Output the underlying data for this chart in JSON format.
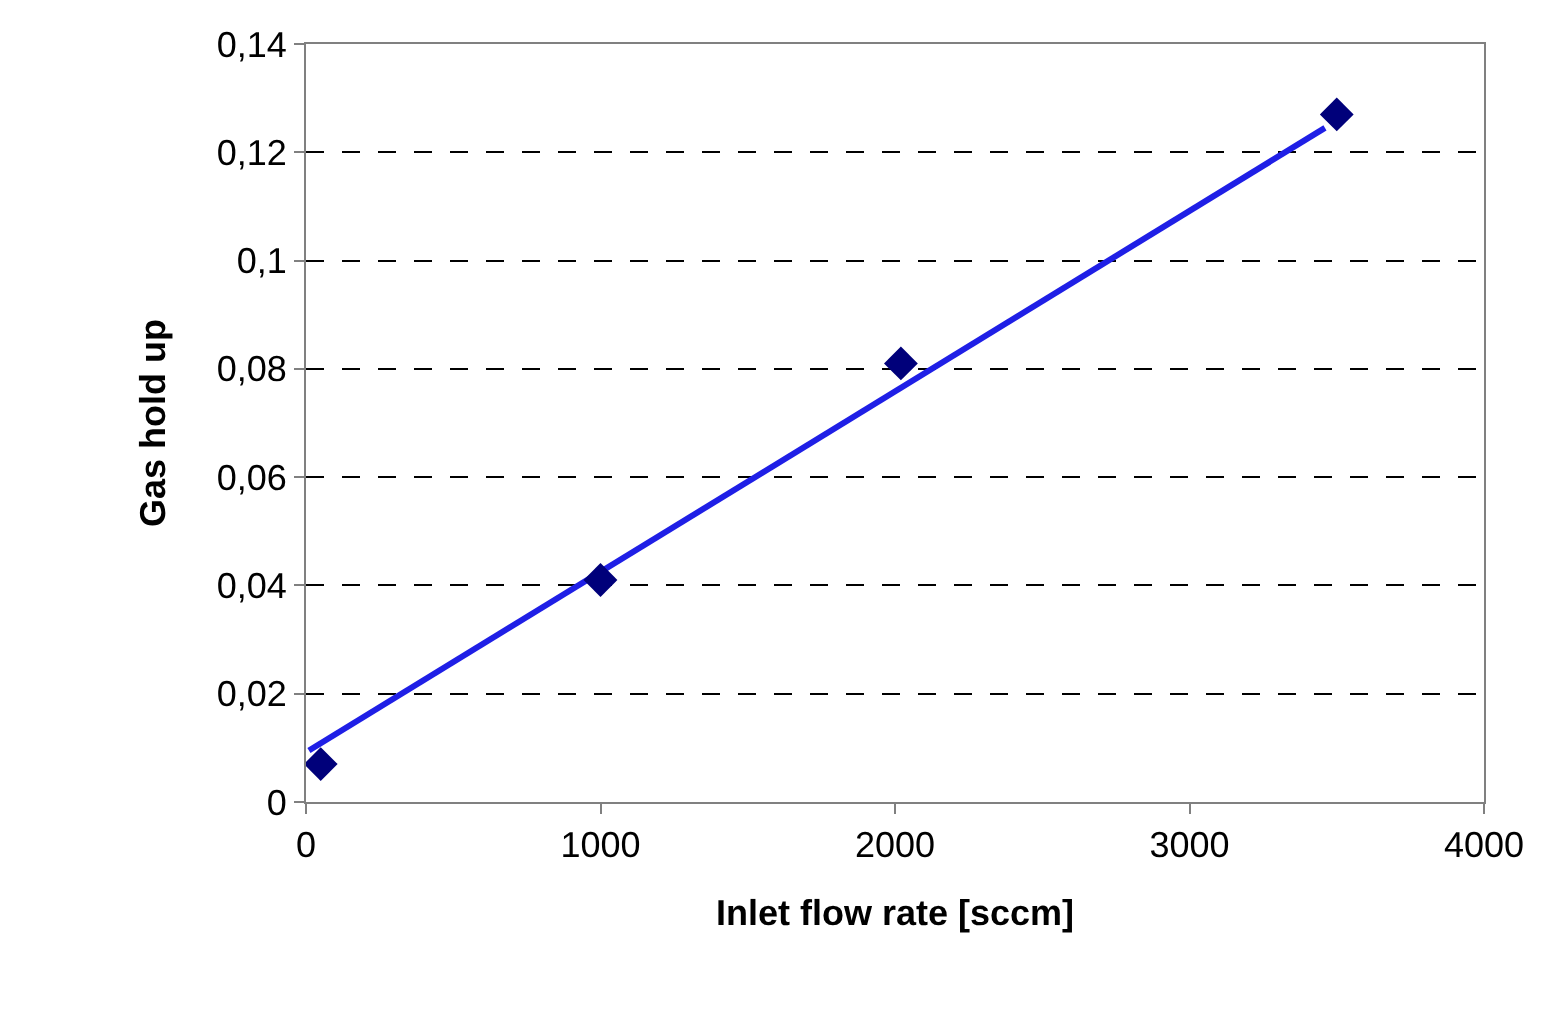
{
  "chart_data": {
    "type": "scatter",
    "xlabel": "Inlet flow rate [sccm]",
    "ylabel": "Gas hold up",
    "xlim": [
      0,
      4000
    ],
    "xticks": [
      0,
      1000,
      2000,
      3000,
      4000
    ],
    "ylim": [
      0,
      0.14
    ],
    "yticks": [
      0,
      {
        "value": 0.02,
        "label": "0,02"
      },
      {
        "value": 0.04,
        "label": "0,04"
      },
      {
        "value": 0.06,
        "label": "0,06"
      },
      {
        "value": 0.08,
        "label": "0,08"
      },
      {
        "value": 0.1,
        "label": "0,1"
      },
      {
        "value": 0.12,
        "label": "0,12"
      },
      {
        "value": 0.14,
        "label": "0,14"
      }
    ],
    "grid": "y",
    "series": [
      {
        "type": "line",
        "color": "#1f1fe6",
        "x": [
          10,
          3460
        ],
        "values": [
          0.0095,
          0.1245
        ],
        "marker": "none",
        "line_style": "solid"
      },
      {
        "color": "#00007a",
        "x": [
          50,
          1000,
          2020,
          3500
        ],
        "values": [
          0.007,
          0.041,
          0.081,
          0.127
        ],
        "marker": "diamond"
      }
    ]
  }
}
